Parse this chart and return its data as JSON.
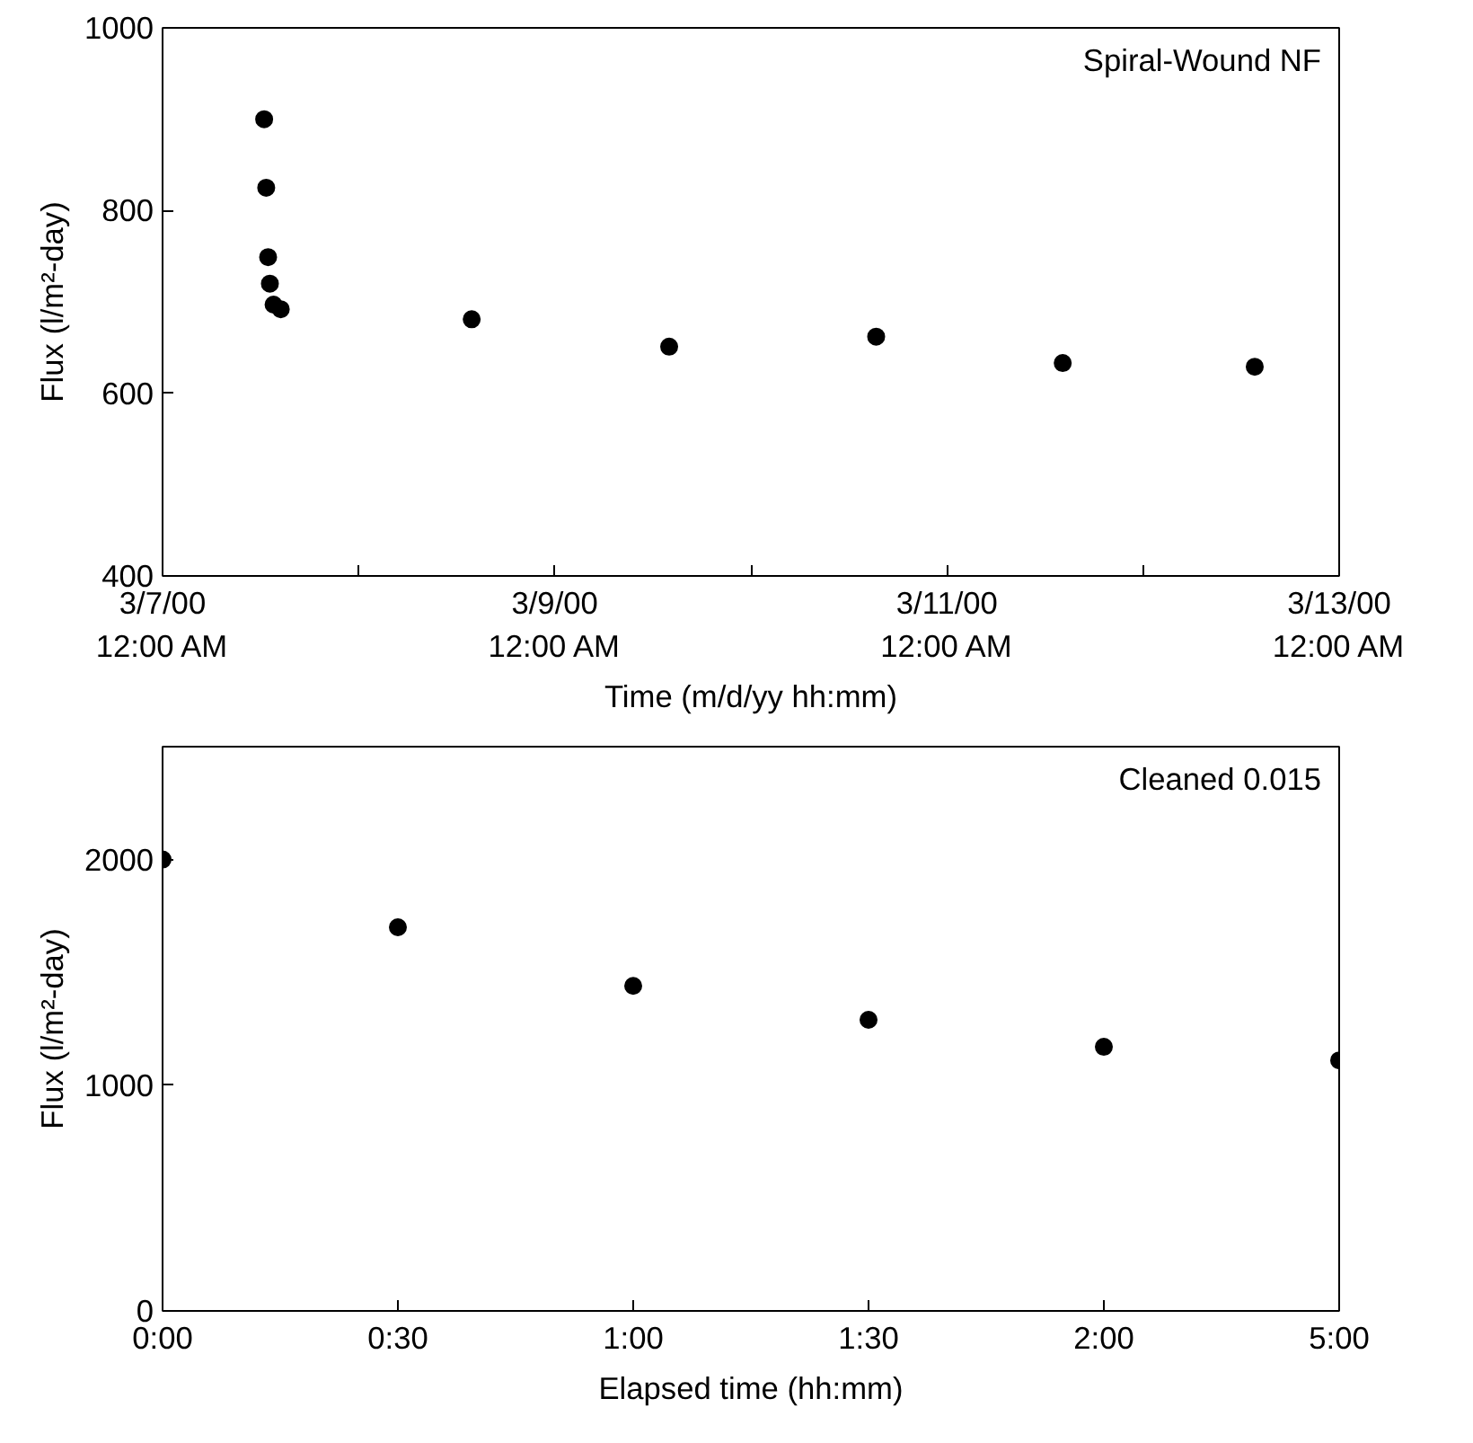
{
  "chart_data": [
    {
      "type": "scatter",
      "title": "Spiral-Wound NF",
      "xlabel": "Time (m/d/yy hh:mm)",
      "ylabel": "Flux (l/m²-day)",
      "x": [
        "2000-03-07T12:26",
        "2000-03-07T12:41",
        "2000-03-07T12:55",
        "2000-03-07T13:08",
        "2000-03-07T13:35",
        "2000-03-07T14:28",
        "2000-03-08T13:50",
        "2000-03-09T14:00",
        "2000-03-10T15:20",
        "2000-03-11T14:10",
        "2000-03-12T13:40"
      ],
      "series": [
        {
          "color": "#000000",
          "values": [
            900,
            825,
            749,
            720,
            697,
            692,
            681,
            651,
            662,
            633,
            629
          ]
        }
      ],
      "xlim": [
        "2000-03-07",
        "2000-03-13"
      ],
      "xticks": [
        {
          "value": "2000-03-07",
          "label": "3/7/00\n12:00 AM"
        },
        {
          "value": "2000-03-08",
          "label": null
        },
        {
          "value": "2000-03-09",
          "label": "3/9/00\n12:00 AM"
        },
        {
          "value": "2000-03-10",
          "label": null
        },
        {
          "value": "2000-03-11",
          "label": "3/11/00\n12:00 AM"
        },
        {
          "value": "2000-03-12",
          "label": null
        },
        {
          "value": "2000-03-13",
          "label": "3/13/00\n12:00 AM"
        }
      ],
      "ylim": [
        400,
        1000
      ],
      "yticks": [
        400,
        600,
        800,
        1000
      ],
      "grid": false,
      "marker": "circle"
    },
    {
      "type": "scatter",
      "title": "Cleaned 0.015",
      "xlabel": "Elapsed time (hh:mm)",
      "ylabel": "Flux (l/m²-day)",
      "categories": [
        "0:00",
        "0:30",
        "1:00",
        "1:30",
        "2:00",
        "5:00"
      ],
      "series": [
        {
          "color": "#000000",
          "values": [
            2000,
            1700,
            1440,
            1290,
            1170,
            1110
          ]
        }
      ],
      "ylim": [
        0,
        2500
      ],
      "yticks": [
        0,
        1000,
        2000
      ],
      "grid": false,
      "marker": "circle"
    }
  ]
}
